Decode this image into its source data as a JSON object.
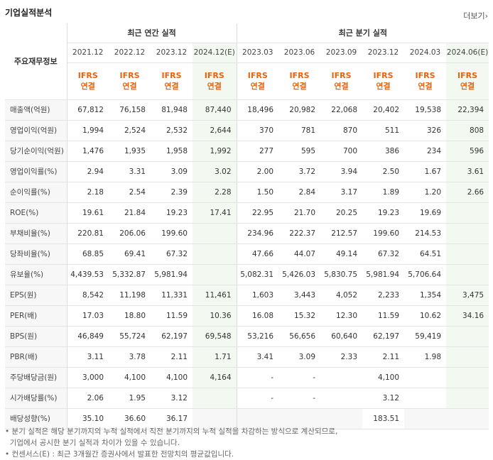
{
  "title": "기업실적분석",
  "more_label": "더보기",
  "more_icon": "chevron-right-icon",
  "row_header": "주요재무정보",
  "annual_group": "최근 연간 실적",
  "quarter_group": "최근 분기 실적",
  "annual_periods": [
    "2021.12",
    "2022.12",
    "2023.12",
    "2024.12(E)"
  ],
  "quarter_periods": [
    "2023.03",
    "2023.06",
    "2023.09",
    "2023.12",
    "2024.03",
    "2024.06(E)"
  ],
  "ifrs_top": "IFRS",
  "ifrs_bottom": "연결",
  "rows": [
    {
      "label": "매출액(억원)",
      "annual": [
        "67,812",
        "76,158",
        "81,948",
        "87,440"
      ],
      "quarter": [
        "18,496",
        "20,982",
        "22,068",
        "20,402",
        "19,538",
        "22,394"
      ]
    },
    {
      "label": "영업이익(억원)",
      "annual": [
        "1,994",
        "2,524",
        "2,532",
        "2,644"
      ],
      "quarter": [
        "370",
        "781",
        "870",
        "511",
        "326",
        "808"
      ]
    },
    {
      "label": "당기순이익(억원)",
      "annual": [
        "1,476",
        "1,935",
        "1,958",
        "1,992"
      ],
      "quarter": [
        "277",
        "595",
        "700",
        "386",
        "234",
        "596"
      ]
    },
    {
      "label": "영업이익률(%)",
      "annual": [
        "2.94",
        "3.31",
        "3.09",
        "3.02"
      ],
      "quarter": [
        "2.00",
        "3.72",
        "3.94",
        "2.50",
        "1.67",
        "3.61"
      ]
    },
    {
      "label": "순이익률(%)",
      "annual": [
        "2.18",
        "2.54",
        "2.39",
        "2.28"
      ],
      "quarter": [
        "1.50",
        "2.84",
        "3.17",
        "1.89",
        "1.20",
        "2.66"
      ]
    },
    {
      "label": "ROE(%)",
      "annual": [
        "19.61",
        "21.84",
        "19.23",
        "17.41"
      ],
      "quarter": [
        "22.95",
        "21.70",
        "20.25",
        "19.23",
        "19.69",
        ""
      ]
    },
    {
      "label": "부채비율(%)",
      "annual": [
        "220.81",
        "206.06",
        "199.60",
        ""
      ],
      "quarter": [
        "234.96",
        "222.37",
        "212.57",
        "199.60",
        "214.53",
        ""
      ]
    },
    {
      "label": "당좌비율(%)",
      "annual": [
        "68.85",
        "69.41",
        "67.32",
        ""
      ],
      "quarter": [
        "47.66",
        "44.07",
        "49.14",
        "67.32",
        "64.51",
        ""
      ]
    },
    {
      "label": "유보율(%)",
      "annual": [
        "4,439.53",
        "5,332.87",
        "5,981.94",
        ""
      ],
      "quarter": [
        "5,082.31",
        "5,426.03",
        "5,830.75",
        "5,981.94",
        "5,706.64",
        ""
      ]
    },
    {
      "label": "EPS(원)",
      "annual": [
        "8,542",
        "11,198",
        "11,331",
        "11,461"
      ],
      "quarter": [
        "1,603",
        "3,443",
        "4,052",
        "2,233",
        "1,354",
        "3,475"
      ]
    },
    {
      "label": "PER(배)",
      "annual": [
        "17.03",
        "18.80",
        "11.59",
        "10.36"
      ],
      "quarter": [
        "16.08",
        "15.32",
        "12.30",
        "11.59",
        "10.62",
        "34.16"
      ]
    },
    {
      "label": "BPS(원)",
      "annual": [
        "46,849",
        "55,724",
        "62,197",
        "69,548"
      ],
      "quarter": [
        "53,216",
        "56,656",
        "60,640",
        "62,197",
        "59,419",
        ""
      ]
    },
    {
      "label": "PBR(배)",
      "annual": [
        "3.11",
        "3.78",
        "2.11",
        "1.71"
      ],
      "quarter": [
        "3.41",
        "3.09",
        "2.33",
        "2.11",
        "1.98",
        ""
      ]
    },
    {
      "label": "주당배당금(원)",
      "annual": [
        "3,000",
        "4,100",
        "4,100",
        "4,164"
      ],
      "quarter": [
        "-",
        "-",
        "",
        "4,100",
        "",
        ""
      ]
    },
    {
      "label": "시가배당률(%)",
      "annual": [
        "2.06",
        "1.95",
        "3.12",
        ""
      ],
      "quarter": [
        "-",
        "-",
        "",
        "3.12",
        "",
        ""
      ]
    },
    {
      "label": "배당성향(%)",
      "annual": [
        "35.10",
        "36.60",
        "36.17",
        ""
      ],
      "quarter": [
        "",
        "",
        "",
        "183.51",
        "",
        ""
      ]
    }
  ],
  "notes": [
    "분기 실적은 해당 분기까지의 누적 실적에서 직전 분기까지의 누적 실적을 차감하는 방식으로 계산되므로,",
    "기업에서 공시한 분기 실적과 차이가 있을 수 있습니다.",
    "컨센서스(E) : 최근 3개월간 증권사에서 발표한 전망치의 평균값입니다."
  ]
}
